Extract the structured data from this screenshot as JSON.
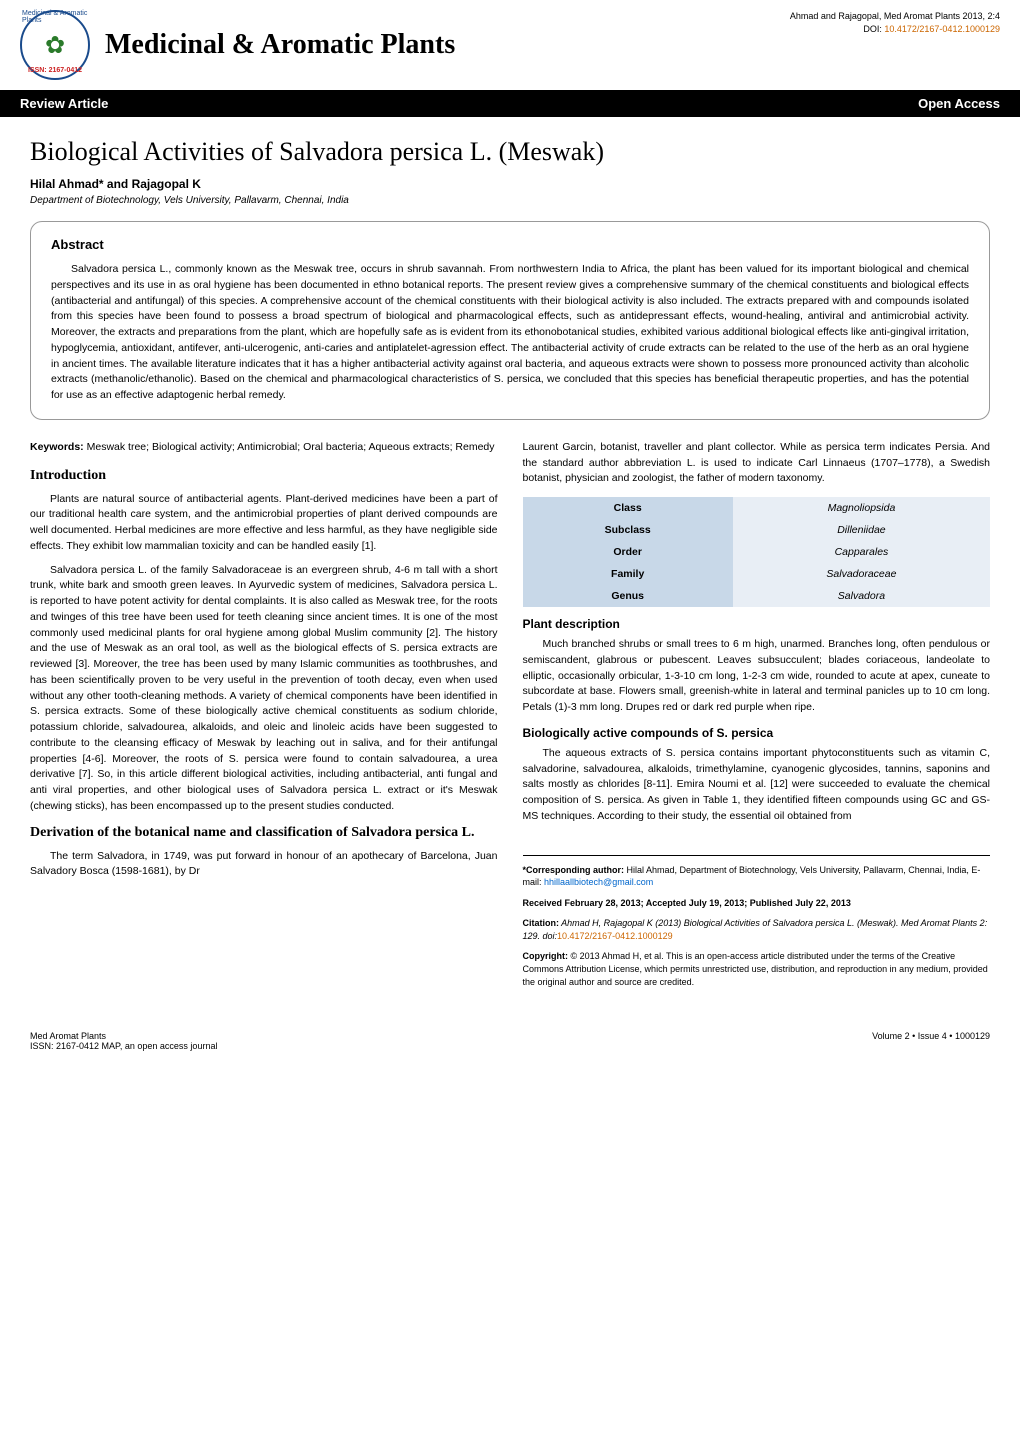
{
  "header": {
    "logo_top": "Medicinal & Aromatic Plants",
    "logo_issn": "ISSN: 2167-0412",
    "journal_title": "Medicinal & Aromatic Plants",
    "citation": "Ahmad and Rajagopal, Med Aromat Plants 2013, 2:4",
    "doi_label": "DOI: ",
    "doi": "10.4172/2167-0412.1000129"
  },
  "black_bar": {
    "left": "Review Article",
    "right": "Open Access"
  },
  "title": "Biological Activities of Salvadora persica L. (Meswak)",
  "authors": "Hilal Ahmad* and Rajagopal K",
  "affiliation": "Department of Biotechnology, Vels University, Pallavarm, Chennai, India",
  "abstract": {
    "heading": "Abstract",
    "text": "Salvadora persica L., commonly known as the Meswak tree, occurs in shrub savannah. From northwestern India to Africa, the plant has been valued for its important biological and chemical perspectives and its use in as oral hygiene has been documented in ethno botanical reports. The present review gives a comprehensive summary of the chemical constituents and biological effects (antibacterial and antifungal) of this species. A comprehensive account of the chemical constituents with their biological activity is also included. The extracts prepared with and compounds isolated from this species have been found to possess a broad spectrum of biological and pharmacological effects, such as antidepressant effects, wound-healing, antiviral and antimicrobial activity. Moreover, the extracts and preparations from the plant, which are hopefully safe as is evident from its ethonobotanical studies, exhibited various additional biological effects like anti-gingival irritation, hypoglycemia, antioxidant, antifever, anti-ulcerogenic, anti-caries and antiplatelet-agression effect. The antibacterial activity of crude extracts can be related to the use of the herb as an oral hygiene in ancient times. The available literature indicates that it has a higher antibacterial activity against oral bacteria, and aqueous extracts were shown to possess more pronounced activity than alcoholic extracts (methanolic/ethanolic). Based on the chemical and pharmacological characteristics of S. persica, we concluded that this species has beneficial therapeutic properties, and has the potential for use as an effective adaptogenic herbal remedy."
  },
  "keywords": {
    "label": "Keywords:",
    "text": " Meswak tree; Biological activity; Antimicrobial; Oral bacteria; Aqueous extracts; Remedy"
  },
  "left_col": {
    "intro_heading": "Introduction",
    "intro_p1": "Plants are natural source of antibacterial agents. Plant-derived medicines have been a part of our traditional health care system, and the antimicrobial properties of plant derived compounds are well documented. Herbal medicines are more effective and less harmful, as they have negligible side effects. They exhibit low mammalian toxicity and can be handled easily [1].",
    "intro_p2": "Salvadora persica L. of the family Salvadoraceae is an evergreen shrub, 4-6 m tall with a short trunk, white bark and smooth green leaves. In Ayurvedic system of medicines, Salvadora persica L. is reported to have potent activity for dental complaints. It is also called as Meswak tree, for the roots and twinges of this tree have been used for teeth cleaning since ancient times. It is one of the most commonly used medicinal plants for oral hygiene among global Muslim community [2]. The history and the use of Meswak as an oral tool, as well as the biological effects of S. persica extracts are reviewed [3]. Moreover, the tree has been used by many Islamic communities as toothbrushes, and has been scientifically proven to be very useful in the prevention of tooth decay, even when used without any other tooth-cleaning methods. A variety of chemical components have been identified in S. persica extracts. Some of these biologically active chemical constituents as sodium chloride, potassium chloride, salvadourea, alkaloids, and oleic and linoleic acids have been suggested to contribute to the cleansing efficacy of Meswak by leaching out in saliva, and for their antifungal properties [4-6]. Moreover, the roots of S. persica were found to contain salvadourea, a urea derivative [7]. So, in this article different biological activities, including antibacterial, anti fungal and anti viral properties, and other biological uses of Salvadora persica L. extract or it's Meswak (chewing sticks), has been encompassed up to the present studies conducted.",
    "deriv_heading": "Derivation of the botanical name and classification of Salvadora persica L.",
    "deriv_p1": "The term Salvadora, in 1749, was put forward in honour of an apothecary of Barcelona, Juan Salvadory Bosca (1598-1681), by Dr"
  },
  "right_col": {
    "top_p": "Laurent Garcin, botanist, traveller and plant collector. While as persica term indicates Persia. And the standard author abbreviation L. is used to indicate Carl Linnaeus (1707–1778), a Swedish botanist, physician and zoologist, the father of modern taxonomy.",
    "plant_heading": "Plant description",
    "plant_p": "Much branched shrubs or small trees to 6 m high, unarmed. Branches long, often pendulous or semiscandent, glabrous or pubescent. Leaves subsucculent; blades coriaceous, landeolate to elliptic, occasionally orbicular, 1-3-10 cm long, 1-2-3 cm wide, rounded to acute at apex, cuneate to subcordate at base. Flowers small, greenish-white in lateral and terminal panicles up to 10 cm long. Petals (1)-3 mm long. Drupes red or dark red purple when ripe.",
    "bio_heading": "Biologically active compounds of S. persica",
    "bio_p": "The aqueous extracts of S. persica contains important phytoconstituents such as vitamin C, salvadorine, salvadourea, alkaloids, trimethylamine, cyanogenic glycosides, tannins, saponins and salts mostly as chlorides [8-11]. Emira Noumi et al. [12] were succeeded to evaluate the chemical composition of S. persica. As given in Table 1, they identified fifteen compounds using GC and GS-MS techniques. According to their study, the essential oil obtained from"
  },
  "classification": {
    "rows": [
      {
        "label": "Class",
        "value": "Magnoliopsida"
      },
      {
        "label": "Subclass",
        "value": "Dilleniidae"
      },
      {
        "label": "Order",
        "value": "Capparales"
      },
      {
        "label": "Family",
        "value": "Salvadoraceae"
      },
      {
        "label": "Genus",
        "value": "Salvadora"
      }
    ],
    "colors": {
      "label_bg": "#c8d8e8",
      "value_bg": "#e8eef5"
    }
  },
  "corr": {
    "label": "*Corresponding author:",
    "text": " Hilal Ahmad, Department of Biotechnology, Vels University, Pallavarm, Chennai, India, E-mail: ",
    "email": "hhillaallbiotech@gmail.com",
    "received": "Received February 28, 2013; Accepted July 19, 2013; Published July 22, 2013",
    "citation_label": "Citation:",
    "citation_text": " Ahmad H, Rajagopal K (2013) Biological Activities of Salvadora persica L. (Meswak). Med Aromat Plants 2: 129. doi:",
    "citation_doi": "10.4172/2167-0412.1000129",
    "copyright_label": "Copyright:",
    "copyright_text": " © 2013 Ahmad H, et al. This is an open-access article distributed under the terms of the Creative Commons Attribution License, which permits unrestricted use, distribution, and reproduction in any medium, provided the original author and source are credited."
  },
  "footer": {
    "left_line1": "Med Aromat Plants",
    "left_line2": "ISSN: 2167-0412 MAP, an open access journal",
    "right": "Volume 2 • Issue 4 • 1000129"
  }
}
